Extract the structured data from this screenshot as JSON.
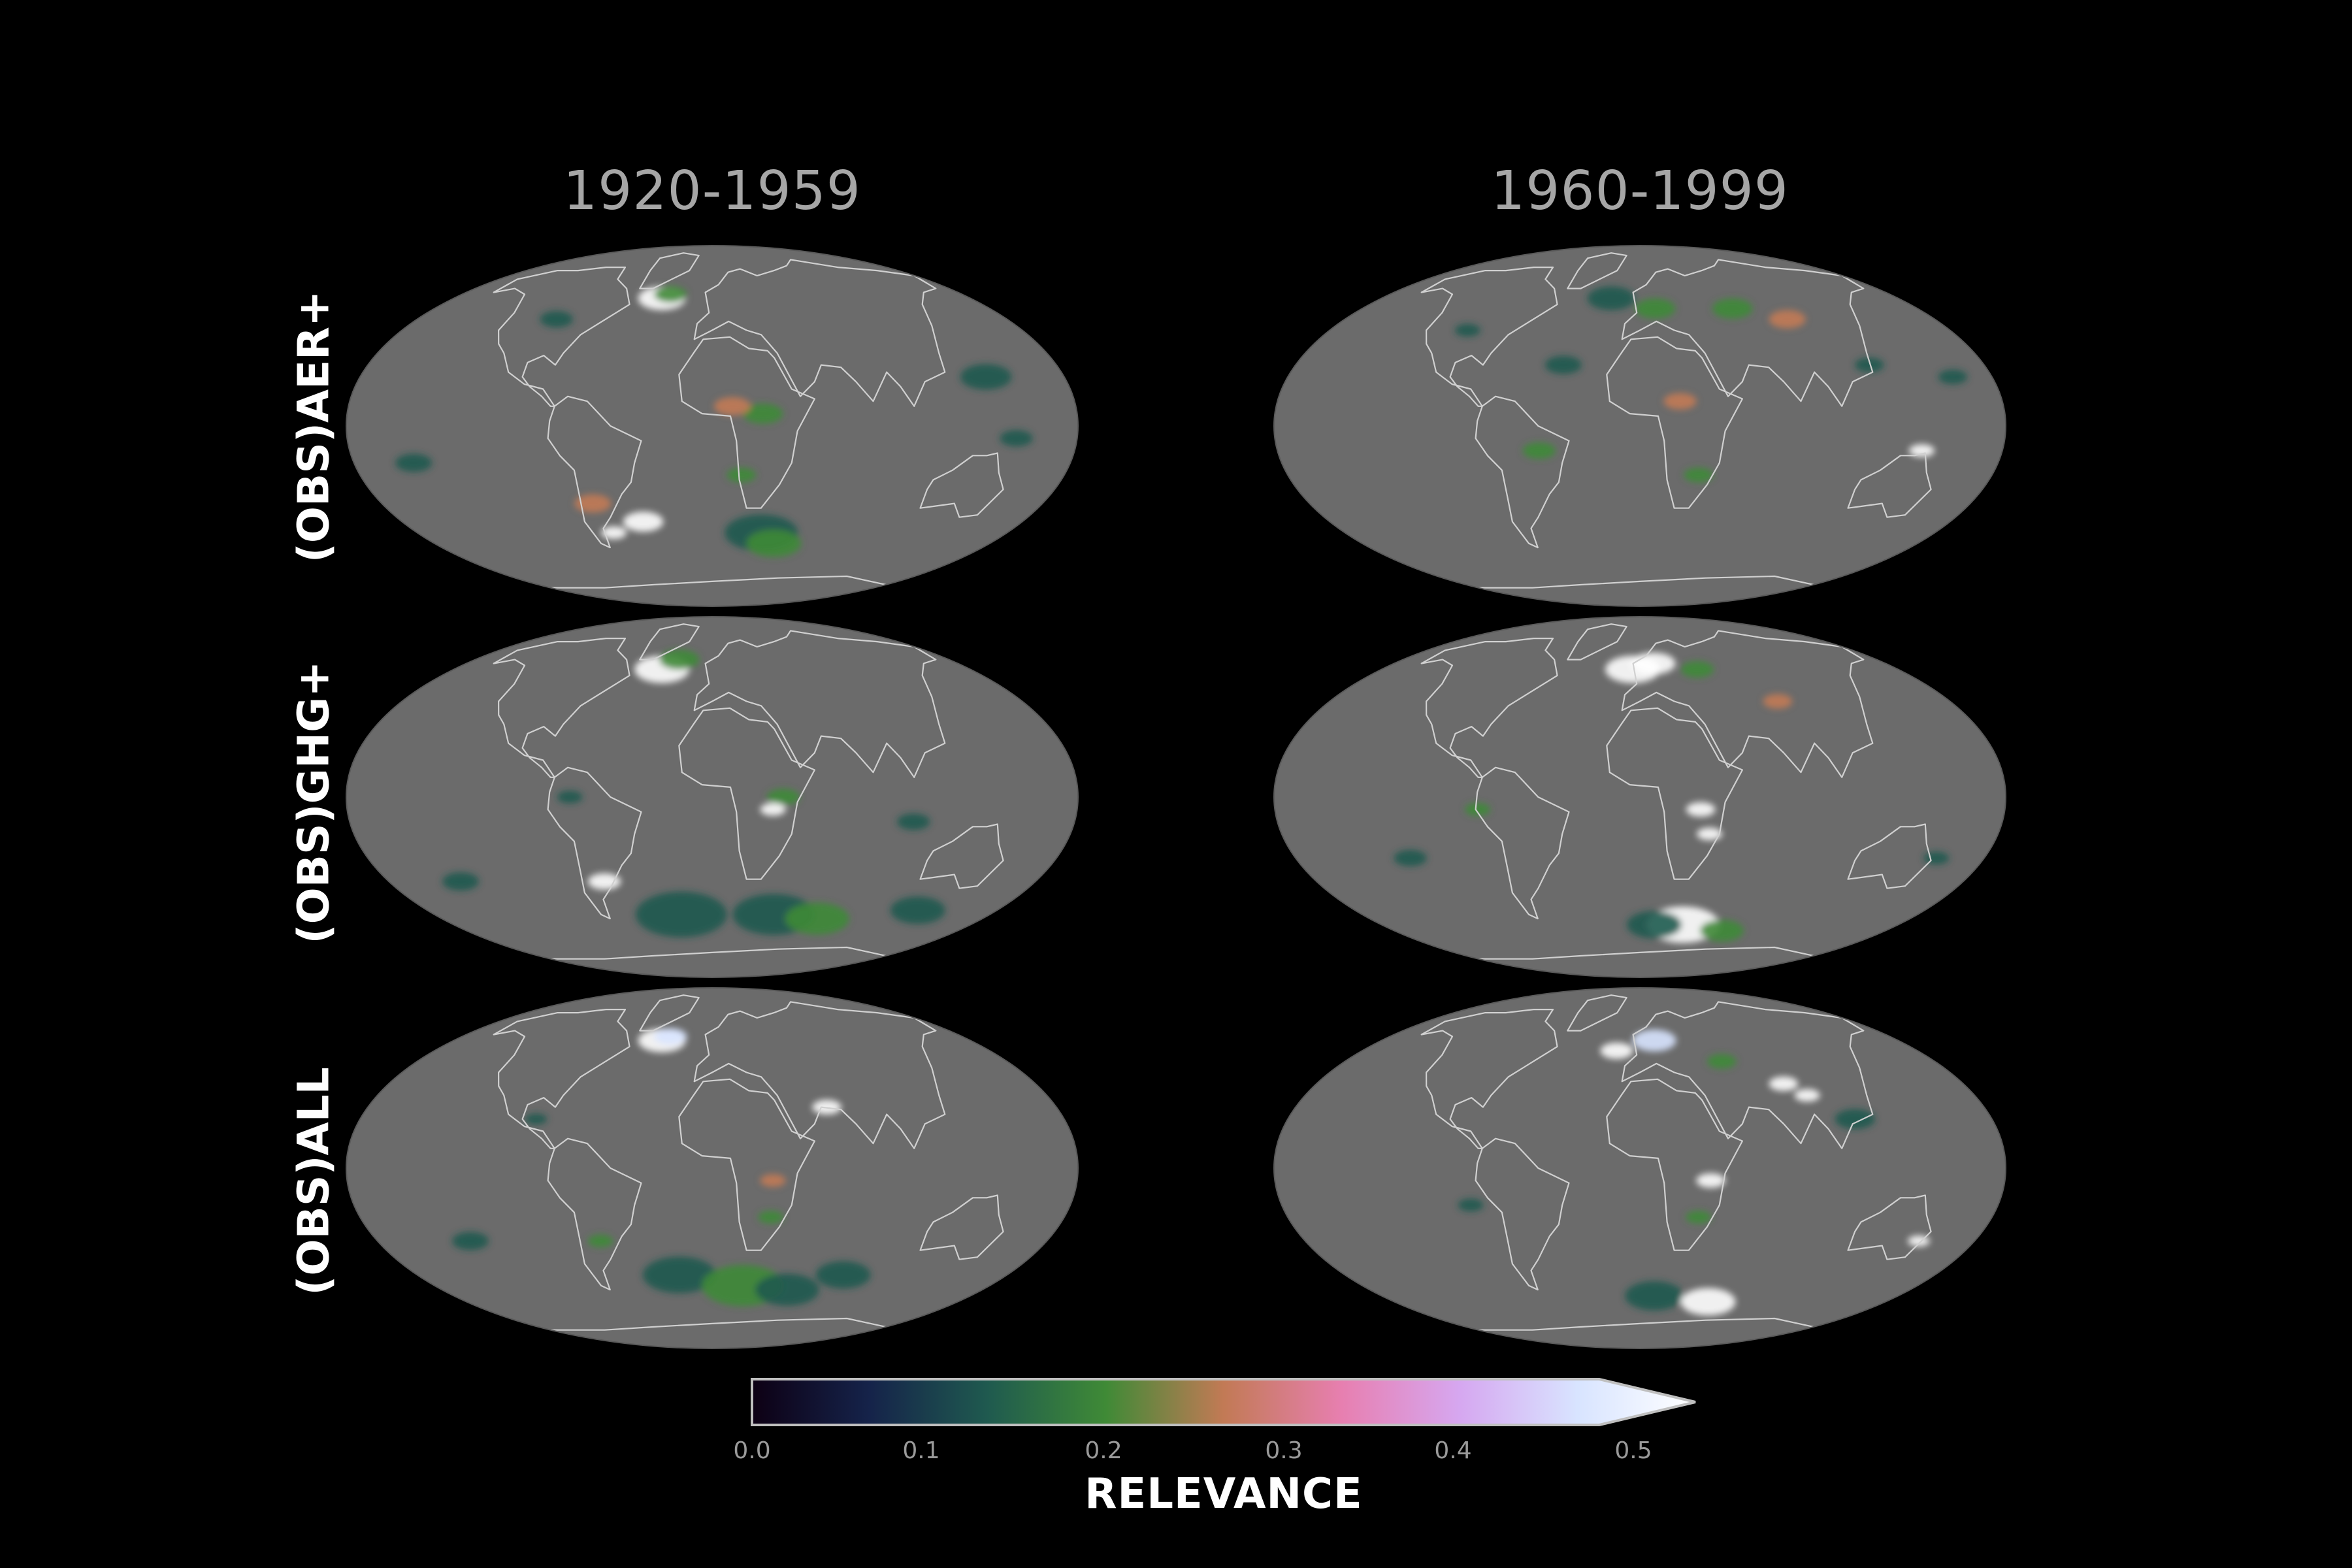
{
  "columns": [
    "1920-1959",
    "1960-1999"
  ],
  "rows": [
    "(OBS)AER+",
    "(OBS)GHG+",
    "(OBS)ALL"
  ],
  "colorbar": {
    "title": "RELEVANCE",
    "ticks": [
      "0.0",
      "0.1",
      "0.2",
      "0.3",
      "0.4",
      "0.5"
    ],
    "range": [
      0.0,
      0.5
    ],
    "extend": "max",
    "colors": [
      "#0d0014",
      "#15234a",
      "#1f5a4f",
      "#3f8a36",
      "#c27a55",
      "#e77fb0",
      "#d6a7f0",
      "#d8e4ff",
      "#ffffff"
    ]
  },
  "map": {
    "projection": "Mollweide",
    "ocean_color": "#6b6b6b",
    "coast_color": "#d0d0d0"
  }
}
